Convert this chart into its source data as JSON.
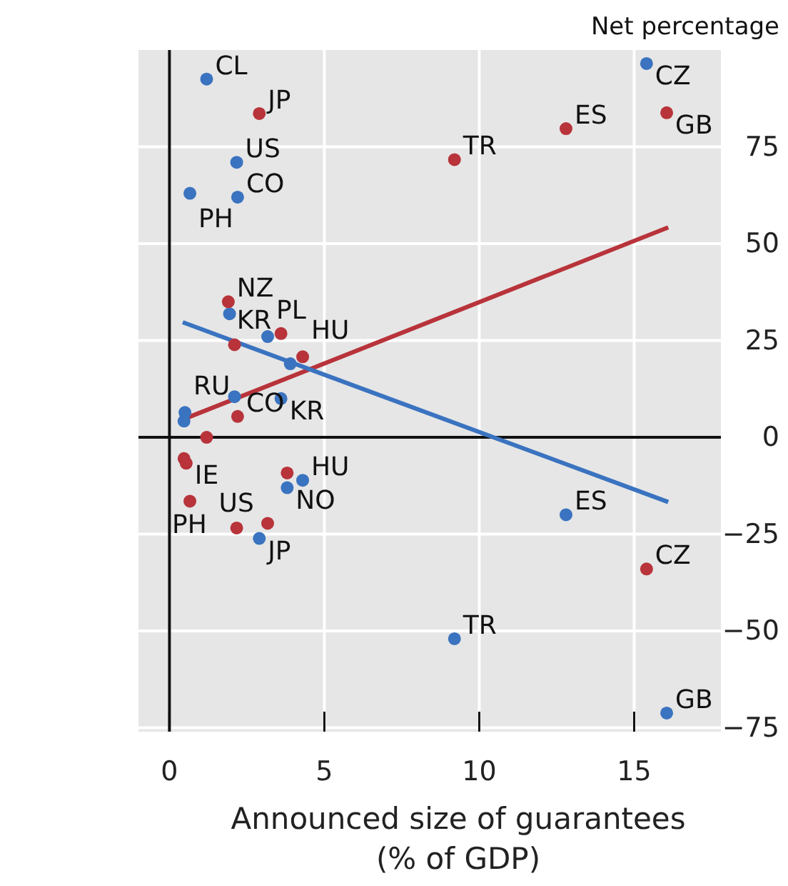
{
  "chart_data": {
    "type": "scatter",
    "ylabel": "Net percentage",
    "xlabel": "Announced size of guarantees\n(% of GDP)",
    "xlim": [
      -1,
      17.8
    ],
    "ylim": [
      -76,
      100
    ],
    "xticks": [
      0,
      5,
      10,
      15
    ],
    "yticks": [
      {
        "value": -75,
        "label": "−75"
      },
      {
        "value": -50,
        "label": "−50"
      },
      {
        "value": -25,
        "label": "−25"
      },
      0,
      25,
      50,
      75
    ],
    "grid": true,
    "series": [
      {
        "color": "#3a73c0",
        "marker": "circle",
        "x": [
          1.2,
          2.17,
          2.2,
          0.66,
          1.94,
          3.17,
          3.9,
          3.6,
          0.5,
          0.47,
          2.1,
          4.3,
          3.8,
          2.9,
          9.2,
          15.4,
          12.8,
          16.05
        ],
        "values": [
          92.5,
          71,
          62,
          63,
          31.9,
          26,
          19,
          10,
          6.4,
          4.2,
          10.5,
          -11.1,
          -13,
          -26.1,
          -52,
          96.5,
          -20,
          -71.2
        ]
      },
      {
        "color": "#b8333a",
        "marker": "circle",
        "x": [
          2.9,
          9.2,
          1.9,
          3.6,
          2.1,
          4.3,
          2.2,
          1.2,
          0.47,
          0.54,
          3.8,
          0.66,
          2.17,
          3.17,
          16.05,
          12.8,
          15.4
        ],
        "values": [
          83.6,
          71.7,
          35,
          26.8,
          23.9,
          20.8,
          5.4,
          0,
          -5.5,
          -6.7,
          -9.2,
          -16.5,
          -23.4,
          -22.2,
          83.8,
          79.7,
          -34
        ]
      },
      {
        "type": "line",
        "color": "#b8333a",
        "x": [
          0.43,
          16.1
        ],
        "values": [
          4.6,
          54.2
        ],
        "line_style": "solid"
      },
      {
        "type": "line",
        "color": "#3a73c0",
        "x": [
          0.43,
          16.1
        ],
        "values": [
          29.7,
          -16.7
        ],
        "line_style": "solid"
      }
    ],
    "annotations": [
      {
        "text": "CL",
        "x": 1.2,
        "y": 92.5
      },
      {
        "text": "JP",
        "x": 2.9,
        "y": 83.6
      },
      {
        "text": "US",
        "x": 2.17,
        "y": 71
      },
      {
        "text": "CO",
        "x": 2.2,
        "y": 62
      },
      {
        "text": "PH",
        "x": 0.66,
        "y": 63
      },
      {
        "text": "TR",
        "x": 9.2,
        "y": 71.7
      },
      {
        "text": "NZ",
        "x": 1.9,
        "y": 35
      },
      {
        "text": "PL",
        "x": 3.17,
        "y": 26
      },
      {
        "text": "KR",
        "x": 3.6,
        "y": 26.8
      },
      {
        "text": "HU",
        "x": 4.3,
        "y": 20.8
      },
      {
        "text": "RU",
        "x": 0.5,
        "y": 6.4
      },
      {
        "text": "KR",
        "x": 3.6,
        "y": 10
      },
      {
        "text": "CO",
        "x": 2.2,
        "y": 5.4
      },
      {
        "text": "IE",
        "x": 0.54,
        "y": -6.7
      },
      {
        "text": "HU",
        "x": 4.3,
        "y": -11.1
      },
      {
        "text": "PH",
        "x": 0.66,
        "y": -16.5
      },
      {
        "text": "NO",
        "x": 3.8,
        "y": -13
      },
      {
        "text": "US",
        "x": 2.17,
        "y": -23.4
      },
      {
        "text": "JP",
        "x": 2.9,
        "y": -26.1
      },
      {
        "text": "TR",
        "x": 9.2,
        "y": -52
      },
      {
        "text": "CZ",
        "x": 15.4,
        "y": 96.5
      },
      {
        "text": "GB",
        "x": 16.05,
        "y": 83.8
      },
      {
        "text": "ES",
        "x": 12.8,
        "y": 79.7
      },
      {
        "text": "ES",
        "x": 12.8,
        "y": -20
      },
      {
        "text": "CZ",
        "x": 15.4,
        "y": -34
      },
      {
        "text": "GB",
        "x": 16.05,
        "y": -71.2
      }
    ]
  }
}
